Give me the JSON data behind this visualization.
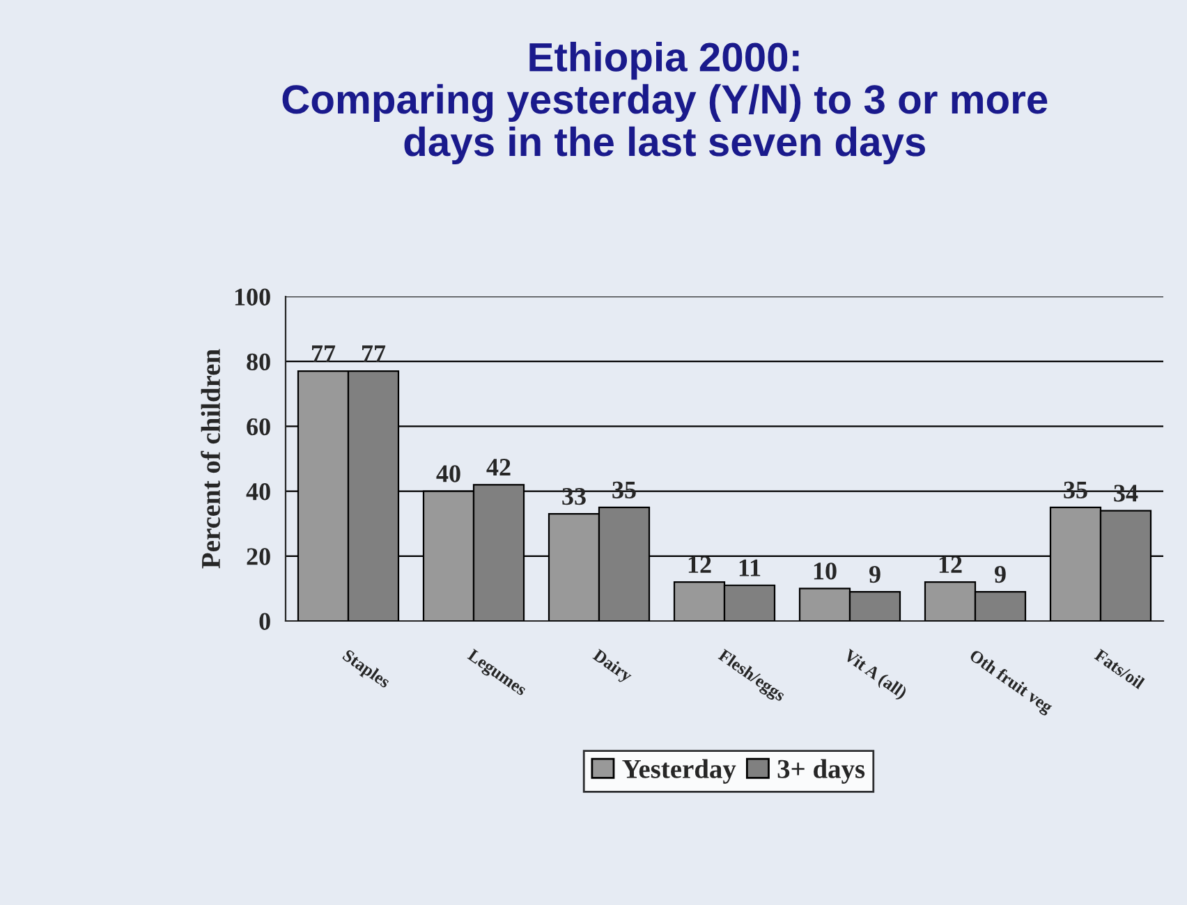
{
  "chart_data": {
    "type": "bar",
    "title": "Ethiopia 2000:\nComparing yesterday (Y/N) to 3 or more\ndays in the last seven days",
    "ylabel": "Percent of children",
    "categories": [
      "Staples",
      "Legumes",
      "Dairy",
      "Flesh/eggs",
      "Vit A (all)",
      "Oth fruit veg",
      "Fats/oil"
    ],
    "series": [
      {
        "name": "Yesterday",
        "color": "#999999",
        "values": [
          77,
          40,
          33,
          12,
          10,
          12,
          35
        ]
      },
      {
        "name": "3+ days",
        "color": "#808080",
        "values": [
          77,
          42,
          35,
          11,
          9,
          9,
          34
        ]
      }
    ],
    "ylim": [
      0,
      100
    ],
    "yticks": [
      0,
      20,
      40,
      60,
      80,
      100
    ],
    "grid": "y",
    "legend": "bottom",
    "data_labels": true
  }
}
